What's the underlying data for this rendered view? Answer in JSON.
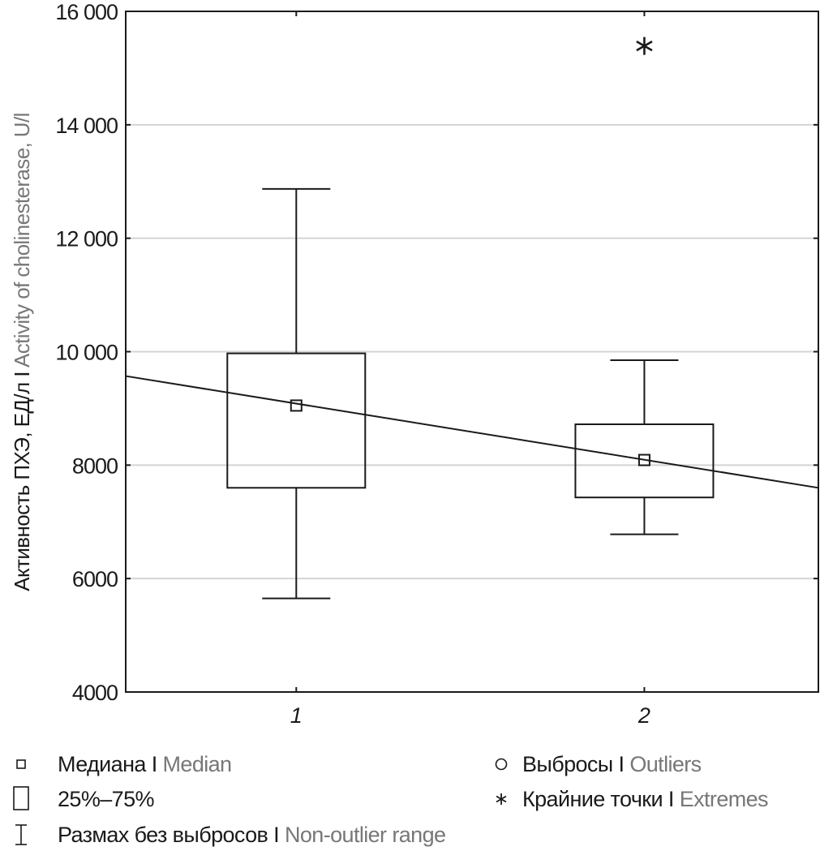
{
  "chart_data": {
    "type": "box",
    "title": "",
    "xlabel": "",
    "ylabel": {
      "ru": "Активность ПХЭ, ЕД/л",
      "separator": "I",
      "en": "Activity of cholinesterase, U/l"
    },
    "ylim": [
      4000,
      16000
    ],
    "yticks": [
      4000,
      6000,
      8000,
      10000,
      12000,
      14000,
      16000
    ],
    "ytick_labels": [
      "4000",
      "6000",
      "8000",
      "10 000",
      "12 000",
      "14 000",
      "16 000"
    ],
    "grid": true,
    "categories": [
      "1",
      "2"
    ],
    "xlim": [
      0.51,
      2.5
    ],
    "boxes": [
      {
        "category": "1",
        "whisker_low": 5650,
        "q1": 7600,
        "median": 9050,
        "q3": 9970,
        "whisker_high": 12870,
        "outliers": [],
        "extremes": []
      },
      {
        "category": "2",
        "whisker_low": 6780,
        "q1": 7430,
        "median": 8090,
        "q3": 8720,
        "whisker_high": 9850,
        "outliers": [],
        "extremes": [
          15390
        ]
      }
    ],
    "trend_line": {
      "x": [
        0.51,
        2.5
      ],
      "y": [
        9570,
        7600
      ]
    },
    "legend": [
      {
        "symbol": "median-square",
        "ru": "Медиана",
        "sep": "I",
        "en": "Median"
      },
      {
        "symbol": "box",
        "ru": "25%–75%",
        "sep": "",
        "en": ""
      },
      {
        "symbol": "whisker",
        "ru": "Размах без выбросов",
        "sep": "I",
        "en": "Non-outlier range"
      },
      {
        "symbol": "circle",
        "ru": "Выбросы",
        "sep": "I",
        "en": "Outliers"
      },
      {
        "symbol": "asterisk",
        "ru": "Крайние точки",
        "sep": "I",
        "en": "Extremes"
      }
    ],
    "legend_position": "bottom"
  }
}
